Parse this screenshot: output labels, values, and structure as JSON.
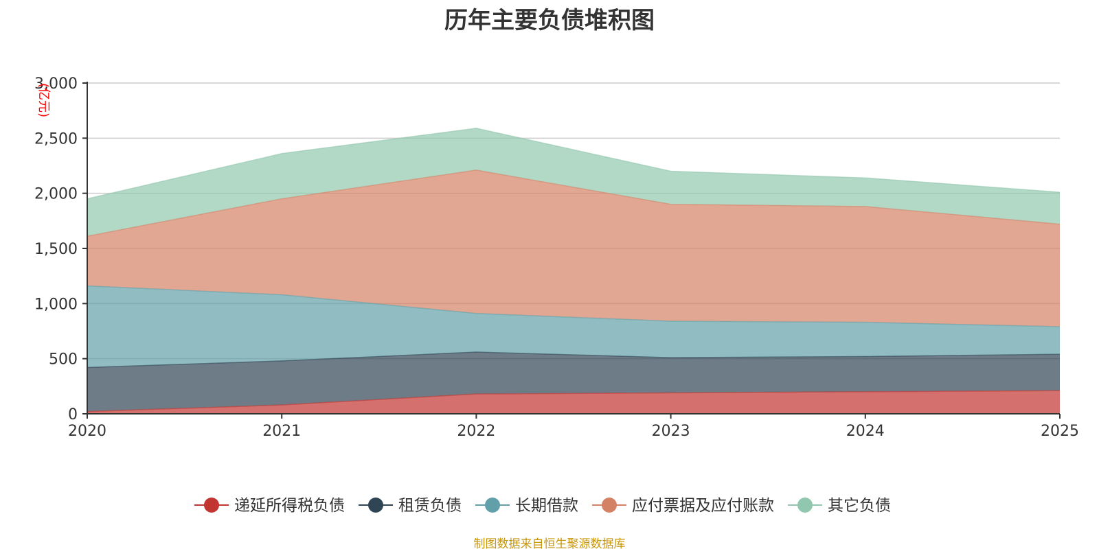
{
  "chart_data": {
    "type": "area",
    "stacked": true,
    "title": "历年主要负债堆积图",
    "unit": "(亿元)",
    "source": "制图数据来自恒生聚源数据库",
    "x": [
      "2020",
      "2021",
      "2022",
      "2023",
      "2024",
      "2025"
    ],
    "ylim": [
      0,
      3000
    ],
    "yticks": [
      0,
      500,
      1000,
      1500,
      2000,
      2500,
      3000
    ],
    "ytick_labels": [
      "0",
      "500",
      "1,000",
      "1,500",
      "2,000",
      "2,500",
      "3,000"
    ],
    "grid": true,
    "legend_position": "bottom-center",
    "series": [
      {
        "name": "递延所得税负债",
        "color": "#c23531",
        "values": [
          20,
          80,
          180,
          190,
          200,
          210
        ]
      },
      {
        "name": "租赁负债",
        "color": "#2f4554",
        "values": [
          400,
          400,
          380,
          320,
          320,
          330
        ]
      },
      {
        "name": "长期借款",
        "color": "#61a0a8",
        "values": [
          740,
          600,
          350,
          330,
          310,
          250
        ]
      },
      {
        "name": "应付票据及应付账款",
        "color": "#d48265",
        "values": [
          450,
          870,
          1300,
          1060,
          1050,
          930
        ]
      },
      {
        "name": "其它负债",
        "color": "#91c7ae",
        "values": [
          340,
          410,
          380,
          300,
          260,
          290
        ]
      }
    ]
  }
}
